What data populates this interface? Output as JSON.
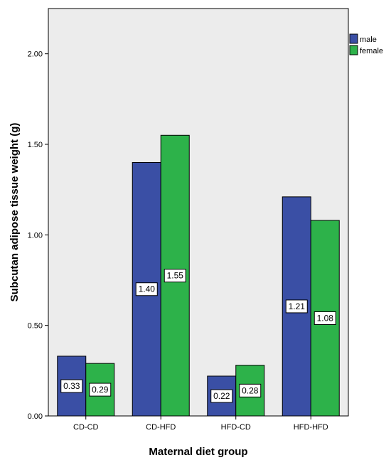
{
  "chart_data": {
    "type": "bar",
    "title": "",
    "xlabel": "Maternal diet group",
    "ylabel": "Subcutan adipose tissue weight (g)",
    "categories": [
      "CD-CD",
      "CD-HFD",
      "HFD-CD",
      "HFD-HFD"
    ],
    "series": [
      {
        "name": "male",
        "values": [
          0.33,
          1.4,
          0.22,
          1.21
        ],
        "labels": [
          "0.33",
          "1.40",
          "0.22",
          "1.21"
        ]
      },
      {
        "name": "female",
        "values": [
          0.29,
          1.55,
          0.28,
          1.08
        ],
        "labels": [
          "0.29",
          "1.55",
          "0.28",
          "1.08"
        ]
      }
    ],
    "ylim": [
      0,
      2.25
    ],
    "yticks": [
      0,
      0.5,
      1.0,
      1.5,
      2.0
    ],
    "ytick_labels": [
      "0.00",
      "0.50",
      "1.00",
      "1.50",
      "2.00"
    ],
    "grid": false,
    "legend_position": "top-right",
    "colors": {
      "male": "#3a4fa5",
      "female": "#2db24a",
      "plot_background": "#ececec",
      "bar_outline": "#000000"
    }
  }
}
